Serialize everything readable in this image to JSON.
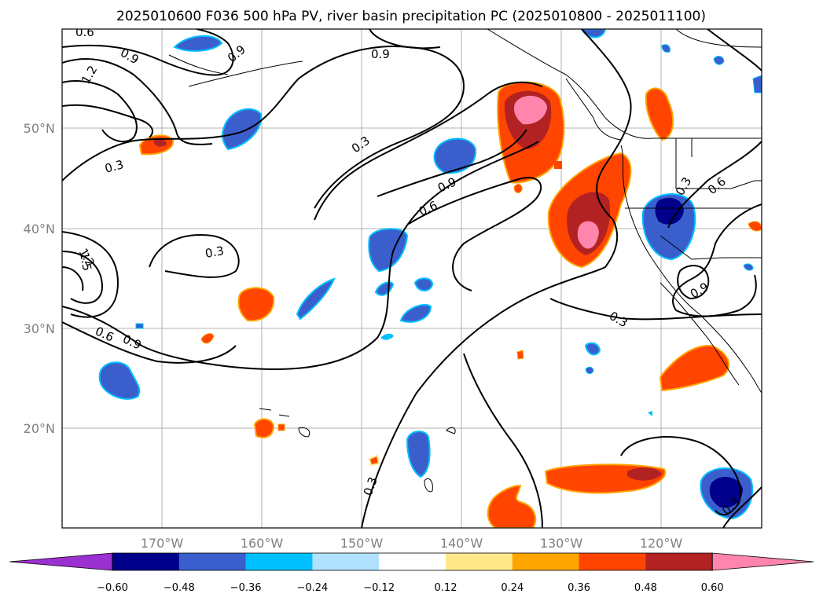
{
  "title": "2025010600 F036 500 hPa PV, river basin precipitation PC (2025010800 - 2025011100)",
  "map": {
    "lat_ticks": [
      "50°N",
      "40°N",
      "30°N",
      "20°N"
    ],
    "lon_ticks": [
      "170°W",
      "160°W",
      "150°W",
      "140°W",
      "130°W",
      "120°W"
    ],
    "gridlines": true,
    "contour_labels": [
      "0.6",
      "0.9",
      "0.9",
      "1.2",
      "0.9",
      "0.3",
      "0.3",
      "0.9",
      "0.6",
      "0.3",
      "0.6",
      "0.3",
      "1.2",
      "1.5",
      "0.6",
      "0.9",
      "0.3",
      "0.9",
      "0.3",
      "0.3"
    ]
  },
  "colorbar": {
    "tick_labels": [
      "−0.60",
      "−0.48",
      "−0.36",
      "−0.24",
      "−0.12",
      "0.12",
      "0.24",
      "0.36",
      "0.48",
      "0.60"
    ],
    "colors": [
      "#9b30d0",
      "#00008b",
      "#3a5fcd",
      "#00bfff",
      "#b0e2ff",
      "#ffffff",
      "#ffe88a",
      "#ffa500",
      "#ff4500",
      "#b22222",
      "#ff85ad"
    ],
    "extend": "both"
  }
}
